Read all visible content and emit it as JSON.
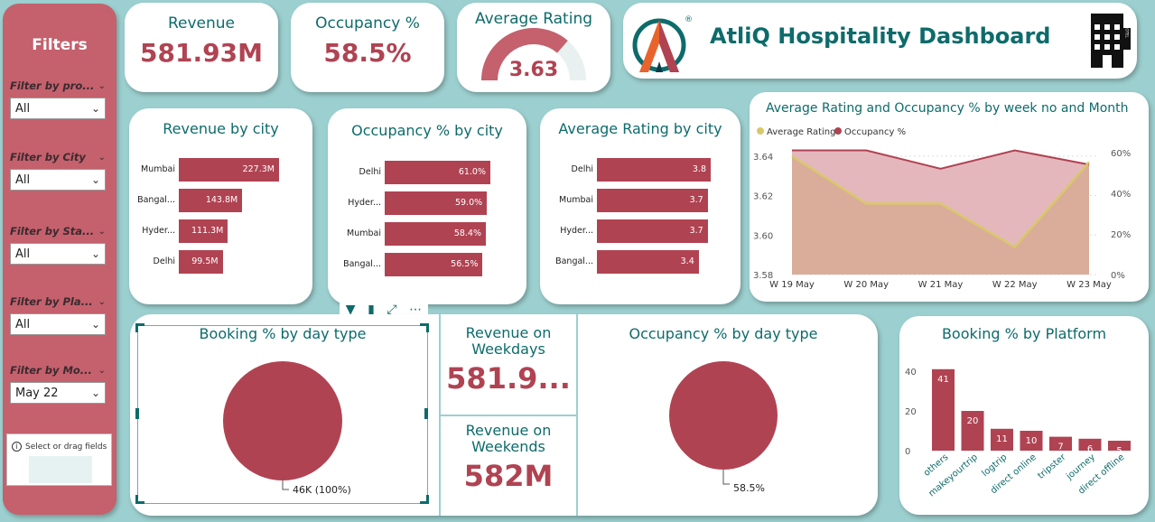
{
  "filters": {
    "title": "Filters",
    "items": [
      {
        "label": "Filter by pro...",
        "value": "All"
      },
      {
        "label": "Filter by City",
        "value": "All"
      },
      {
        "label": "Filter by Sta...",
        "value": "All"
      },
      {
        "label": "Filter by Pla...",
        "value": "All"
      },
      {
        "label": "Filter by Mo...",
        "value": "May 22"
      }
    ],
    "drag_text": "Select or drag fields"
  },
  "kpis": {
    "revenue": {
      "title": "Revenue",
      "value": "581.93M"
    },
    "occupancy": {
      "title": "Occupancy %",
      "value": "58.5%"
    },
    "rating": {
      "title": "Average Rating",
      "value": "3.63",
      "gauge_fraction": 0.726
    }
  },
  "header": {
    "title": "AtliQ Hospitality Dashboard",
    "logo_mark": "®",
    "building_sign": "HOTEL"
  },
  "revenue_by_city": {
    "title": "Revenue by city",
    "rows": [
      {
        "city": "Mumbai",
        "label": "227.3M",
        "value": 227.3
      },
      {
        "city": "Bangal...",
        "label": "143.8M",
        "value": 143.8
      },
      {
        "city": "Hyder...",
        "label": "111.3M",
        "value": 111.3
      },
      {
        "city": "Delhi",
        "label": "99.5M",
        "value": 99.5
      }
    ]
  },
  "occupancy_by_city": {
    "title": "Occupancy % by city",
    "rows": [
      {
        "city": "Delhi",
        "label": "61.0%",
        "value": 61.0
      },
      {
        "city": "Hyder...",
        "label": "59.0%",
        "value": 59.0
      },
      {
        "city": "Mumbai",
        "label": "58.4%",
        "value": 58.4
      },
      {
        "city": "Bangal...",
        "label": "56.5%",
        "value": 56.5
      }
    ]
  },
  "rating_by_city": {
    "title": "Average Rating by city",
    "rows": [
      {
        "city": "Delhi",
        "label": "3.8",
        "value": 3.8
      },
      {
        "city": "Mumbai",
        "label": "3.7",
        "value": 3.7
      },
      {
        "city": "Hyder...",
        "label": "3.7",
        "value": 3.7
      },
      {
        "city": "Bangal...",
        "label": "3.4",
        "value": 3.4
      }
    ]
  },
  "weekly": {
    "title": "Average Rating and Occupancy % by week no and Month",
    "legend": [
      {
        "name": "Average Rating",
        "color": "#d9c86a"
      },
      {
        "name": "Occupancy %",
        "color": "#b04352"
      }
    ],
    "left_ticks": [
      "3.64",
      "3.62",
      "3.60",
      "3.58"
    ],
    "right_ticks": [
      "60%",
      "40%",
      "20%",
      "0%"
    ],
    "weeks": [
      "W 19 May",
      "W 20 May",
      "W 21 May",
      "W 22 May",
      "W 23 May"
    ]
  },
  "booking_day_type": {
    "title": "Booking % by day type",
    "label": "46K (100%)"
  },
  "revenue_weekdays": {
    "title": "Revenue on Weekdays",
    "value": "581.9..."
  },
  "revenue_weekends": {
    "title": "Revenue on Weekends",
    "value": "582M"
  },
  "occupancy_day_type": {
    "title": "Occupancy % by day type",
    "label": "58.5%"
  },
  "chart_data": [
    {
      "type": "bar",
      "title": "Revenue by city",
      "categories": [
        "Mumbai",
        "Bangal...",
        "Hyder...",
        "Delhi"
      ],
      "values": [
        227.3,
        143.8,
        111.3,
        99.5
      ]
    },
    {
      "type": "bar",
      "title": "Occupancy % by city",
      "categories": [
        "Delhi",
        "Hyder...",
        "Mumbai",
        "Bangal..."
      ],
      "values": [
        61.0,
        59.0,
        58.4,
        56.5
      ]
    },
    {
      "type": "bar",
      "title": "Average Rating by city",
      "categories": [
        "Delhi",
        "Mumbai",
        "Hyder...",
        "Bangal..."
      ],
      "values": [
        3.8,
        3.7,
        3.7,
        3.4
      ]
    },
    {
      "type": "area",
      "title": "Average Rating and Occupancy % by week no and Month",
      "x": [
        "W 19 May",
        "W 20 May",
        "W 21 May",
        "W 22 May",
        "W 23 May"
      ],
      "series": [
        {
          "name": "Average Rating",
          "values": [
            3.64,
            3.616,
            3.616,
            3.594,
            3.637
          ],
          "axis": "left"
        },
        {
          "name": "Occupancy %",
          "values": [
            61,
            61,
            52,
            61,
            54
          ],
          "axis": "right"
        }
      ],
      "ylim_left": [
        3.58,
        3.645
      ],
      "ylim_right": [
        0,
        63
      ],
      "legend": "top-left"
    },
    {
      "type": "pie",
      "title": "Booking % by day type",
      "values": [
        100
      ],
      "labels": [
        "46K (100%)"
      ]
    },
    {
      "type": "pie",
      "title": "Occupancy % by day type",
      "values": [
        100
      ],
      "labels": [
        "58.5%"
      ]
    },
    {
      "type": "bar",
      "title": "Booking % by Platform",
      "categories": [
        "others",
        "makeyourtrip",
        "logtrip",
        "direct online",
        "tripster",
        "journey",
        "direct offline"
      ],
      "values": [
        41,
        20,
        11,
        10,
        7,
        6,
        5
      ],
      "yticks": [
        "40",
        "20",
        "0"
      ],
      "ylim": [
        0,
        45
      ]
    }
  ]
}
